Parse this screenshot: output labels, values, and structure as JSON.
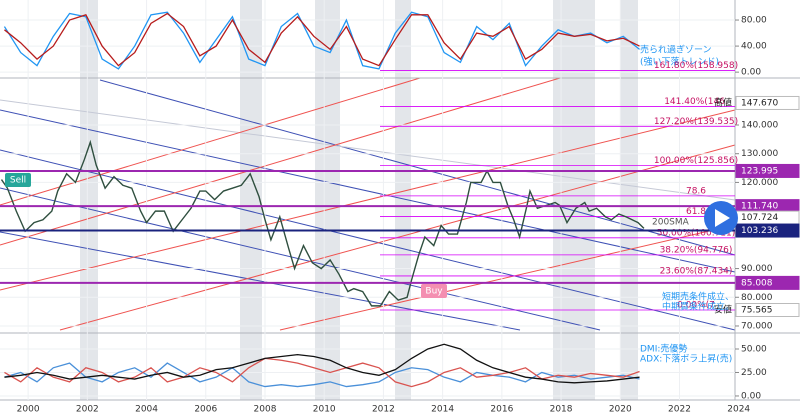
{
  "chart_data": [
    {
      "type": "line",
      "ylim": [
        -9,
        107.7
      ],
      "yticks": [
        {
          "value": 80,
          "label": "80.00"
        },
        {
          "value": 40,
          "label": "40.00"
        },
        {
          "value": 0,
          "label": "0.00"
        }
      ],
      "x": [
        1999.2,
        1999.75,
        2000.3,
        2000.85,
        2001.4,
        2001.95,
        2002.5,
        2003.05,
        2003.6,
        2004.15,
        2004.7,
        2005.25,
        2005.8,
        2006.35,
        2006.9,
        2007.45,
        2008,
        2008.55,
        2009.1,
        2009.65,
        2010.2,
        2010.75,
        2011.3,
        2011.85,
        2012.4,
        2012.95,
        2013.5,
        2014.05,
        2014.6,
        2015.15,
        2015.7,
        2016.25,
        2016.8,
        2017.35,
        2017.9,
        2018.45,
        2019,
        2019.55,
        2020.1,
        2020.65
      ],
      "series": [
        {
          "color": "#2196f3",
          "values": [
            70,
            30,
            10,
            55,
            90,
            85,
            20,
            5,
            40,
            88,
            92,
            60,
            15,
            50,
            85,
            20,
            10,
            70,
            90,
            40,
            30,
            80,
            10,
            5,
            60,
            92,
            85,
            30,
            15,
            70,
            50,
            75,
            10,
            40,
            65,
            55,
            60,
            45,
            55,
            35
          ]
        },
        {
          "color": "#b71c1c",
          "values": [
            65,
            45,
            20,
            40,
            80,
            88,
            40,
            10,
            30,
            75,
            90,
            70,
            25,
            40,
            80,
            35,
            15,
            60,
            85,
            55,
            35,
            70,
            20,
            10,
            50,
            88,
            88,
            45,
            20,
            60,
            55,
            70,
            20,
            35,
            60,
            55,
            58,
            48,
            52,
            40
          ]
        }
      ],
      "annotations": [
        "売られ過ぎゾーン",
        "(強い下落トレンド)"
      ]
    },
    {
      "type": "line",
      "xlim": [
        1999.05,
        2026.07
      ],
      "xticks": [
        2000,
        2002,
        2004,
        2006,
        2008,
        2010,
        2012,
        2014,
        2016,
        2018,
        2020,
        2022,
        2024
      ],
      "ylim": [
        68.6,
        159.5
      ],
      "yticks": [
        {
          "value": 140,
          "label": "140.000"
        },
        {
          "value": 130,
          "label": "130.000"
        },
        {
          "value": 120,
          "label": "120.000"
        },
        {
          "value": 90,
          "label": "90.000"
        },
        {
          "value": 80,
          "label": "80.000"
        },
        {
          "value": 70,
          "label": "70.000"
        }
      ],
      "x": [
        1999.1,
        1999.3,
        1999.6,
        1999.9,
        2000.2,
        2000.5,
        2000.8,
        2001.0,
        2001.3,
        2001.6,
        2001.9,
        2002.1,
        2002.3,
        2002.6,
        2002.9,
        2003.2,
        2003.5,
        2003.8,
        2004.0,
        2004.3,
        2004.6,
        2004.9,
        2005.2,
        2005.5,
        2005.8,
        2006.0,
        2006.3,
        2006.6,
        2006.9,
        2007.2,
        2007.5,
        2007.8,
        2008.0,
        2008.2,
        2008.5,
        2008.8,
        2009.0,
        2009.3,
        2009.6,
        2009.9,
        2010.2,
        2010.5,
        2010.8,
        2011.0,
        2011.3,
        2011.6,
        2011.9,
        2012.2,
        2012.5,
        2012.8,
        2012.95,
        2013.2,
        2013.4,
        2013.7,
        2013.95,
        2014.2,
        2014.5,
        2014.8,
        2014.95,
        2015.3,
        2015.5,
        2015.7,
        2015.95,
        2016.2,
        2016.4,
        2016.6,
        2016.85,
        2016.95,
        2017.2,
        2017.5,
        2017.8,
        2017.95,
        2018.2,
        2018.5,
        2018.8,
        2018.95,
        2019.2,
        2019.5,
        2019.7,
        2019.95,
        2020.2,
        2020.4,
        2020.6,
        2020.8
      ],
      "series": [
        {
          "color": "#2f4f3f",
          "values": [
            121,
            118,
            110,
            103,
            106,
            107,
            110,
            117,
            123,
            120,
            128,
            134,
            126,
            118,
            122,
            119,
            118,
            110,
            106,
            110,
            110,
            103,
            107,
            111,
            117,
            117,
            114,
            117,
            118,
            119,
            123,
            115,
            107,
            100,
            108,
            97,
            90,
            98,
            92,
            90,
            93,
            88,
            82,
            83,
            82,
            77,
            77,
            82,
            79,
            80,
            86,
            95,
            101,
            98,
            105,
            102,
            102,
            113,
            120,
            120,
            124,
            120,
            120,
            112,
            107,
            101,
            112,
            117,
            111,
            112,
            113,
            112,
            106,
            111,
            113,
            110,
            111,
            108,
            107,
            109,
            108,
            107,
            106,
            104
          ]
        }
      ],
      "fib_levels": [
        {
          "value": 158.958,
          "label": "161.80%(158.958)"
        },
        {
          "value": 146.47,
          "label": "141.40%(146."
        },
        {
          "value": 139.535,
          "label": "127.20%(139.535)"
        },
        {
          "value": 125.856,
          "label": "100.00%(125.856)"
        },
        {
          "value": 115.3,
          "label": "78.6"
        },
        {
          "value": 108.1,
          "label": "61.8"
        },
        {
          "value": 100.711,
          "label": "50.00%(100.711)"
        },
        {
          "value": 94.776,
          "label": "38.20%(94.776)"
        },
        {
          "value": 87.434,
          "label": "23.60%(87.434)"
        },
        {
          "value": 75.565,
          "label": "0.00%(7"
        }
      ],
      "price_levels": [
        {
          "value": 147.67,
          "label": "147.670",
          "tag": "高値",
          "color": "#ffffff",
          "line": false
        },
        {
          "value": 123.995,
          "label": "123.995",
          "color": "#9c27b0",
          "line": true
        },
        {
          "value": 111.74,
          "label": "111.740",
          "color": "#9c27b0",
          "line": true
        },
        {
          "value": 107.724,
          "label": "107.724",
          "tag": "平均",
          "color": "#ffffff",
          "line": false
        },
        {
          "value": 103.236,
          "label": "103.236",
          "color": "#1a237e",
          "line": true
        },
        {
          "value": 85.008,
          "label": "85.008",
          "color": "#9c27b0",
          "line": true
        },
        {
          "value": 75.565,
          "label": "75.565",
          "tag": "安値",
          "color": "#ffffff",
          "line": false
        }
      ],
      "annotations": [
        "Sell",
        "Buy",
        "短期売条件成立、",
        "中期買条件成立。",
        "200SMA"
      ]
    },
    {
      "type": "line",
      "ylim": [
        -4.3,
        64.9
      ],
      "yticks": [
        {
          "value": 50,
          "label": "50.00"
        },
        {
          "value": 25,
          "label": "25.00"
        },
        {
          "value": 0,
          "label": "0.00"
        }
      ],
      "x": [
        1999.2,
        1999.75,
        2000.3,
        2000.85,
        2001.4,
        2001.95,
        2002.5,
        2003.05,
        2003.6,
        2004.15,
        2004.7,
        2005.25,
        2005.8,
        2006.35,
        2006.9,
        2007.45,
        2008,
        2008.55,
        2009.1,
        2009.65,
        2010.2,
        2010.75,
        2011.3,
        2011.85,
        2012.4,
        2012.95,
        2013.5,
        2014.05,
        2014.6,
        2015.15,
        2015.7,
        2016.25,
        2016.8,
        2017.35,
        2017.9,
        2018.45,
        2019,
        2019.55,
        2020.1,
        2020.65
      ],
      "series": [
        {
          "color": "#4a90d9",
          "values": [
            20,
            25,
            15,
            30,
            35,
            20,
            15,
            25,
            30,
            20,
            35,
            25,
            15,
            20,
            30,
            15,
            10,
            12,
            10,
            12,
            15,
            10,
            12,
            15,
            25,
            30,
            28,
            20,
            15,
            25,
            22,
            20,
            15,
            25,
            20,
            22,
            18,
            20,
            22,
            18
          ]
        },
        {
          "color": "#d9534f",
          "values": [
            25,
            15,
            30,
            20,
            15,
            30,
            25,
            15,
            20,
            30,
            15,
            20,
            30,
            25,
            15,
            30,
            40,
            38,
            35,
            30,
            25,
            30,
            35,
            30,
            15,
            10,
            15,
            25,
            30,
            20,
            22,
            25,
            30,
            18,
            22,
            20,
            24,
            22,
            20,
            26
          ]
        },
        {
          "color": "#111111",
          "values": [
            20,
            22,
            25,
            22,
            18,
            20,
            22,
            20,
            18,
            22,
            25,
            20,
            22,
            28,
            30,
            35,
            40,
            42,
            44,
            42,
            38,
            30,
            25,
            22,
            28,
            40,
            50,
            55,
            50,
            38,
            30,
            25,
            20,
            18,
            15,
            14,
            15,
            16,
            18,
            20
          ]
        }
      ],
      "annotations": [
        "DMI:売優勢",
        "ADX:下落ボラ上昇(売)"
      ]
    }
  ]
}
